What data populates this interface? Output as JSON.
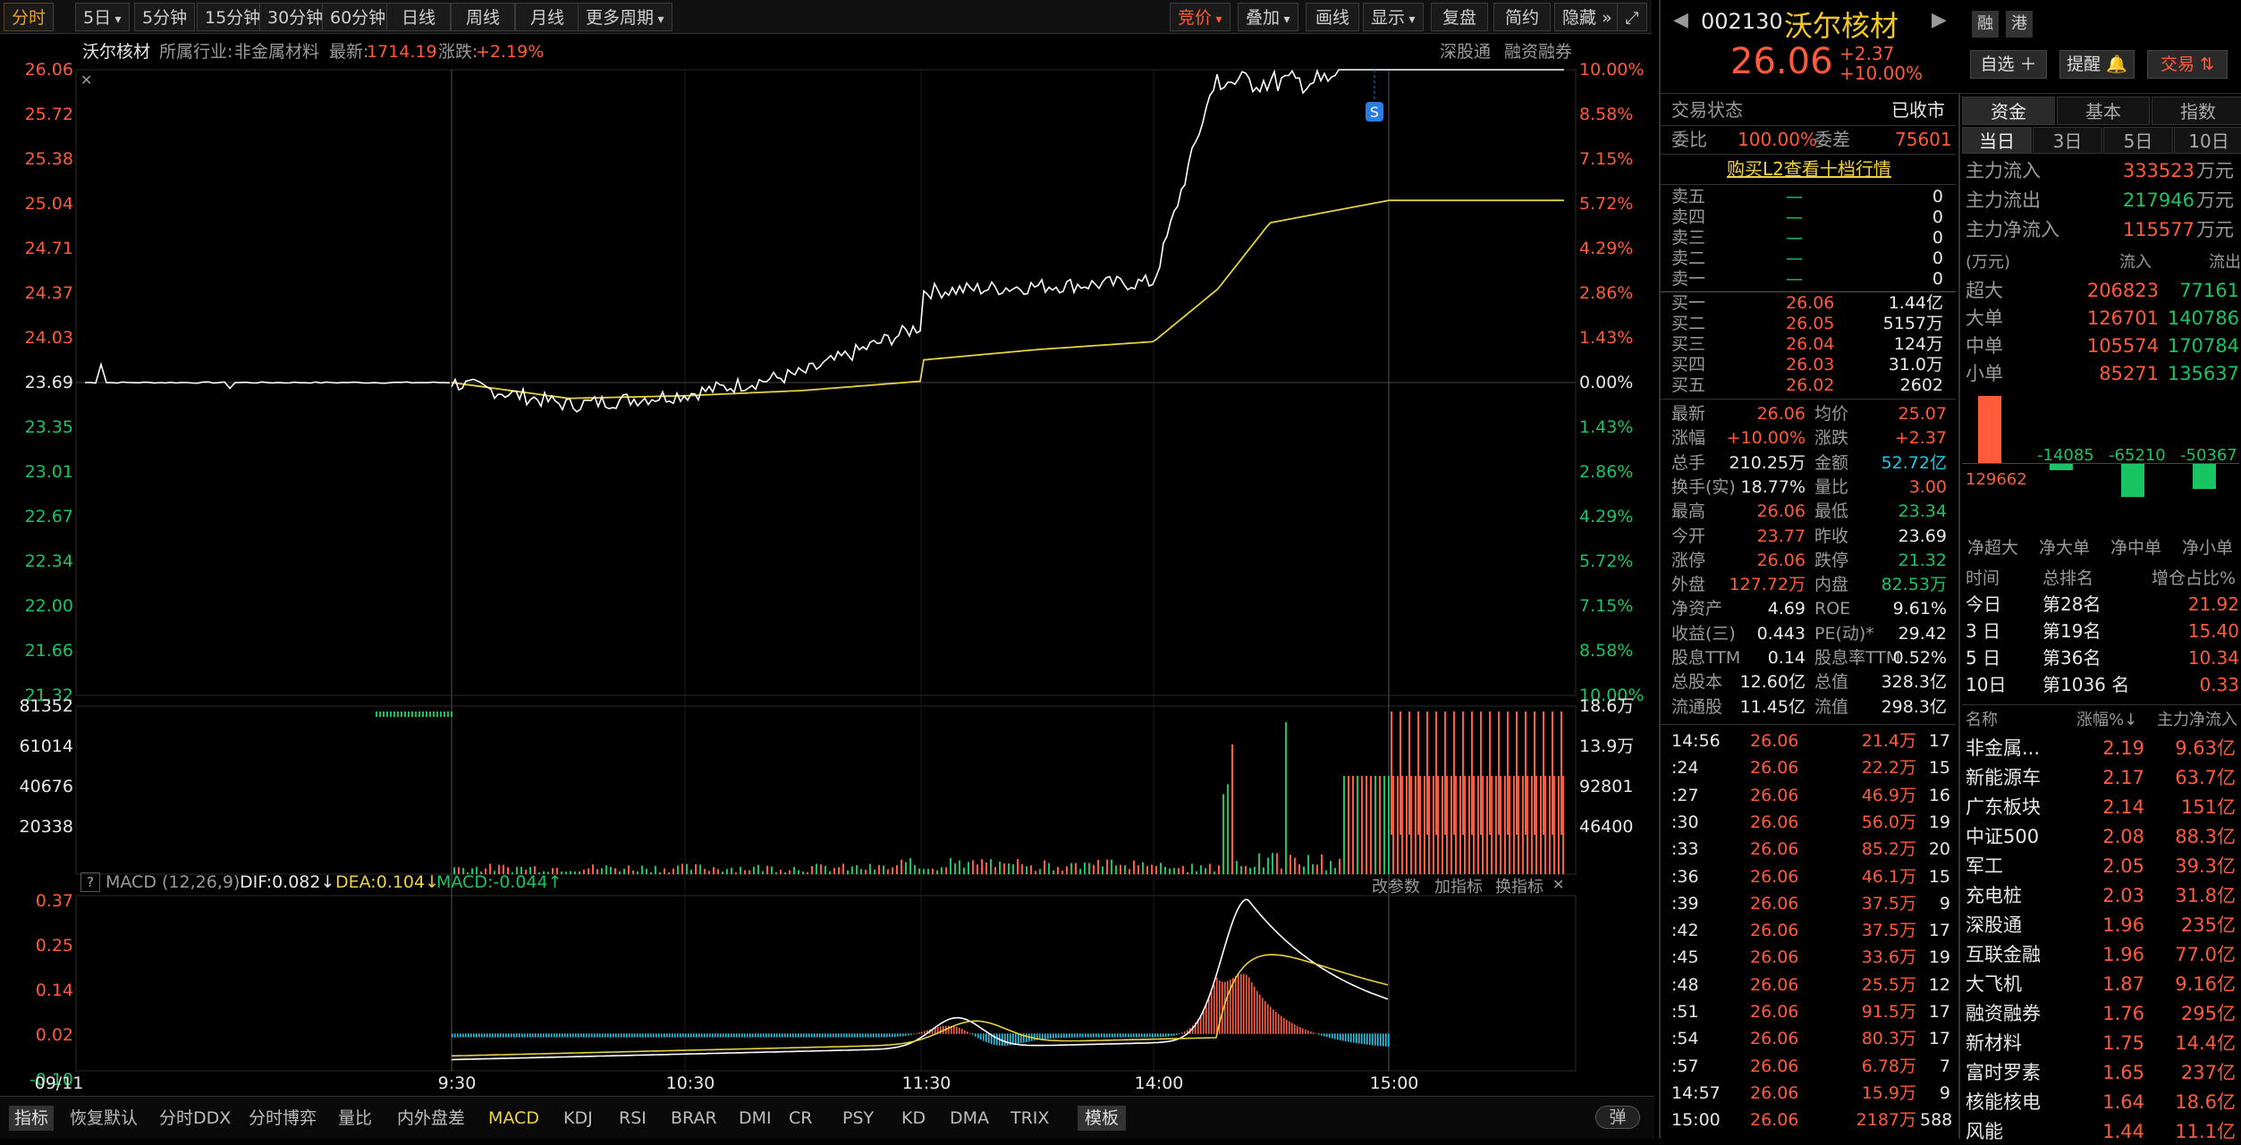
{
  "colors": {
    "up": "#ff5a3c",
    "down": "#19c463",
    "price_line": "#ffffff",
    "avg_line": "#e6d23c",
    "background": "#000000",
    "accent": "#f0a020"
  },
  "toolbar": {
    "periods": [
      "分时",
      "5日",
      "5分钟",
      "15分钟",
      "30分钟",
      "60分钟",
      "日线",
      "周线",
      "月线",
      "更多周期"
    ],
    "right_tools": [
      "竞价",
      "叠加",
      "画线",
      "显示",
      "复盘",
      "简约",
      "隐藏"
    ]
  },
  "info_bar": {
    "stock": "沃尔核材",
    "industry_label": "所属行业:",
    "industry": "非金属材料",
    "latest_label": "最新:",
    "latest": "1714.19",
    "change_label": "涨跌:",
    "change": "+2.19%",
    "tag1": "深股通",
    "tag2": "融资融券"
  },
  "price_axis": {
    "left": [
      "26.06",
      "25.72",
      "25.38",
      "25.04",
      "24.71",
      "24.37",
      "24.03",
      "23.69",
      "23.35",
      "23.01",
      "22.67",
      "22.34",
      "22.00",
      "21.66",
      "21.32"
    ],
    "right": [
      "10.00%",
      "8.58%",
      "7.15%",
      "5.72%",
      "4.29%",
      "2.86%",
      "1.43%",
      "0.00%",
      "1.43%",
      "2.86%",
      "4.29%",
      "5.72%",
      "7.15%",
      "8.58%",
      "10.00%"
    ]
  },
  "volume_axis": {
    "left": [
      "81352",
      "61014",
      "40676",
      "20338"
    ],
    "right": [
      "18.6万",
      "13.9万",
      "92801",
      "46400"
    ]
  },
  "macd": {
    "title": "MACD (12,26,9)",
    "dif": "DIF:0.082↓",
    "dea": "DEA:0.104↓",
    "macd": "MACD:-0.044↑",
    "axis": [
      "0.37",
      "0.25",
      "0.14",
      "0.02",
      "-0.10"
    ],
    "tools": [
      "改参数",
      "加指标",
      "换指标"
    ]
  },
  "time_axis": [
    "09/11",
    "9:30",
    "10:30",
    "11:30",
    "14:00",
    "15:00"
  ],
  "chart_data": {
    "type": "line",
    "title": "",
    "x": [
      "09:30",
      "10:00",
      "10:30",
      "11:00",
      "11:30",
      "13:00",
      "13:30",
      "14:00",
      "14:15",
      "14:30",
      "15:00"
    ],
    "series": [
      {
        "name": "",
        "values": [
          23.69,
          23.52,
          23.6,
          23.76,
          24.12,
          24.38,
          24.42,
          24.45,
          26.06,
          26.06,
          26.06
        ]
      },
      {
        "name": "均价",
        "values": [
          23.69,
          23.57,
          23.59,
          23.63,
          23.7,
          23.86,
          23.94,
          24.0,
          24.4,
          24.9,
          25.07
        ]
      }
    ],
    "ylim": [
      21.32,
      26.06
    ]
  },
  "bottom_tabs": [
    "指标",
    "恢复默认",
    "分时DDX",
    "分时博弈",
    "量比",
    "内外盘差",
    "MACD",
    "KDJ",
    "RSI",
    "BRAR",
    "DMI",
    "CR",
    "PSY",
    "KD",
    "DMA",
    "TRIX",
    "模板"
  ],
  "bottom_right": "弹",
  "quote": {
    "code": "002130",
    "name": "沃尔核材",
    "tags": [
      "融",
      "港"
    ],
    "price": "26.06",
    "change": "+2.37",
    "change_pct": "+10.00%",
    "buttons": [
      "自选",
      "提醒",
      "交易"
    ],
    "status_label": "交易状态",
    "status": "已收市",
    "wb_label": "委比",
    "wb": "100.00%",
    "wc_label": "委差",
    "wc": "75601",
    "l2_link": "购买L2查看十档行情"
  },
  "order_book": {
    "sells": [
      {
        "label": "卖五",
        "price": "—",
        "vol": "0"
      },
      {
        "label": "卖四",
        "price": "—",
        "vol": "0"
      },
      {
        "label": "卖三",
        "price": "—",
        "vol": "0"
      },
      {
        "label": "卖二",
        "price": "—",
        "vol": "0"
      },
      {
        "label": "卖一",
        "price": "—",
        "vol": "0"
      }
    ],
    "buys": [
      {
        "label": "买一",
        "price": "26.06",
        "vol": "1.44亿"
      },
      {
        "label": "买二",
        "price": "26.05",
        "vol": "5157万"
      },
      {
        "label": "买三",
        "price": "26.04",
        "vol": "124万"
      },
      {
        "label": "买四",
        "price": "26.03",
        "vol": "31.0万"
      },
      {
        "label": "买五",
        "price": "26.02",
        "vol": "2602"
      }
    ]
  },
  "stats": [
    {
      "l1": "最新",
      "v1": "26.06",
      "c1": "red",
      "l2": "均价",
      "v2": "25.07",
      "c2": "red"
    },
    {
      "l1": "涨幅",
      "v1": "+10.00%",
      "c1": "red",
      "l2": "涨跌",
      "v2": "+2.37",
      "c2": "red"
    },
    {
      "l1": "总手",
      "v1": "210.25万",
      "c1": "white",
      "l2": "金额",
      "v2": "52.72亿",
      "c2": "cyan"
    },
    {
      "l1": "换手(实)",
      "v1": "18.77%",
      "c1": "white",
      "l2": "量比",
      "v2": "3.00",
      "c2": "red"
    },
    {
      "l1": "最高",
      "v1": "26.06",
      "c1": "red",
      "l2": "最低",
      "v2": "23.34",
      "c2": "green"
    },
    {
      "l1": "今开",
      "v1": "23.77",
      "c1": "red",
      "l2": "昨收",
      "v2": "23.69",
      "c2": "white"
    },
    {
      "l1": "涨停",
      "v1": "26.06",
      "c1": "red",
      "l2": "跌停",
      "v2": "21.32",
      "c2": "green"
    },
    {
      "l1": "外盘",
      "v1": "127.72万",
      "c1": "red",
      "l2": "内盘",
      "v2": "82.53万",
      "c2": "green"
    },
    {
      "l1": "净资产",
      "v1": "4.69",
      "c1": "white",
      "l2": "ROE",
      "v2": "9.61%",
      "c2": "white"
    },
    {
      "l1": "收益(三)",
      "v1": "0.443",
      "c1": "white",
      "l2": "PE(动)*",
      "v2": "29.42",
      "c2": "white"
    },
    {
      "l1": "股息TTM",
      "v1": "0.14",
      "c1": "white",
      "l2": "股息率TTM",
      "v2": "0.52%",
      "c2": "white"
    },
    {
      "l1": "总股本",
      "v1": "12.60亿",
      "c1": "white",
      "l2": "总值",
      "v2": "328.3亿",
      "c2": "white"
    },
    {
      "l1": "流通股",
      "v1": "11.45亿",
      "c1": "white",
      "l2": "流值",
      "v2": "298.3亿",
      "c2": "white"
    }
  ],
  "ticks": [
    {
      "t": "14:56",
      "p": "26.06",
      "v": "21.4万",
      "n": "17"
    },
    {
      "t": ":24",
      "p": "26.06",
      "v": "22.2万",
      "n": "15"
    },
    {
      "t": ":27",
      "p": "26.06",
      "v": "46.9万",
      "n": "16"
    },
    {
      "t": ":30",
      "p": "26.06",
      "v": "56.0万",
      "n": "19"
    },
    {
      "t": ":33",
      "p": "26.06",
      "v": "85.2万",
      "n": "20"
    },
    {
      "t": ":36",
      "p": "26.06",
      "v": "46.1万",
      "n": "15"
    },
    {
      "t": ":39",
      "p": "26.06",
      "v": "37.5万",
      "n": "9"
    },
    {
      "t": ":42",
      "p": "26.06",
      "v": "37.5万",
      "n": "17"
    },
    {
      "t": ":45",
      "p": "26.06",
      "v": "33.6万",
      "n": "19"
    },
    {
      "t": ":48",
      "p": "26.06",
      "v": "25.5万",
      "n": "12"
    },
    {
      "t": ":51",
      "p": "26.06",
      "v": "91.5万",
      "n": "17"
    },
    {
      "t": ":54",
      "p": "26.06",
      "v": "80.3万",
      "n": "17"
    },
    {
      "t": ":57",
      "p": "26.06",
      "v": "6.78万",
      "n": "7"
    },
    {
      "t": "14:57",
      "p": "26.06",
      "v": "15.9万",
      "n": "9"
    },
    {
      "t": "15:00",
      "p": "26.06",
      "v": "2187万",
      "n": "588"
    }
  ],
  "fund": {
    "tabs": [
      "资金",
      "基本",
      "指数"
    ],
    "subtabs": [
      "当日",
      "3日",
      "5日",
      "10日"
    ],
    "flows": [
      {
        "label": "主力流入",
        "value": "333523",
        "unit": "万元",
        "c": "red"
      },
      {
        "label": "主力流出",
        "value": "217946",
        "unit": "万元",
        "c": "green"
      },
      {
        "label": "主力净流入",
        "value": "115577",
        "unit": "万元",
        "c": "red"
      }
    ],
    "table_head": [
      "(万元)",
      "流入",
      "流出"
    ],
    "table": [
      {
        "label": "超大",
        "in": "206823",
        "out": "77161"
      },
      {
        "label": "大单",
        "in": "126701",
        "out": "140786"
      },
      {
        "label": "中单",
        "in": "105574",
        "out": "170784"
      },
      {
        "label": "小单",
        "in": "85271",
        "out": "135637"
      }
    ],
    "net": [
      {
        "label": "净超大",
        "value": 129662
      },
      {
        "label": "净大单",
        "value": -14085
      },
      {
        "label": "净中单",
        "value": -65210
      },
      {
        "label": "净小单",
        "value": -50367
      }
    ],
    "rank_head": [
      "时间",
      "总排名",
      "增仓占比%"
    ],
    "ranks": [
      {
        "t": "今日",
        "r": "第28名",
        "p": "21.92"
      },
      {
        "t": "3 日",
        "r": "第19名",
        "p": "15.40"
      },
      {
        "t": "5 日",
        "r": "第36名",
        "p": "10.34"
      },
      {
        "t": "10日",
        "r": "第1036 名",
        "p": "0.33"
      }
    ],
    "sector_head": [
      "名称",
      "涨幅%↓",
      "主力净流入"
    ],
    "sectors": [
      {
        "n": "非金属...",
        "p": "2.19",
        "v": "9.63亿"
      },
      {
        "n": "新能源车",
        "p": "2.17",
        "v": "63.7亿"
      },
      {
        "n": "广东板块",
        "p": "2.14",
        "v": "151亿"
      },
      {
        "n": "中证500",
        "p": "2.08",
        "v": "88.3亿"
      },
      {
        "n": "军工",
        "p": "2.05",
        "v": "39.3亿"
      },
      {
        "n": "充电桩",
        "p": "2.03",
        "v": "31.8亿"
      },
      {
        "n": "深股通",
        "p": "1.96",
        "v": "235亿"
      },
      {
        "n": "互联金融",
        "p": "1.96",
        "v": "77.0亿"
      },
      {
        "n": "大飞机",
        "p": "1.87",
        "v": "9.16亿"
      },
      {
        "n": "融资融券",
        "p": "1.76",
        "v": "295亿"
      },
      {
        "n": "新材料",
        "p": "1.75",
        "v": "14.4亿"
      },
      {
        "n": "富时罗素",
        "p": "1.65",
        "v": "237亿"
      },
      {
        "n": "核能核电",
        "p": "1.64",
        "v": "18.6亿"
      },
      {
        "n": "风能",
        "p": "1.44",
        "v": "11.1亿"
      }
    ]
  }
}
